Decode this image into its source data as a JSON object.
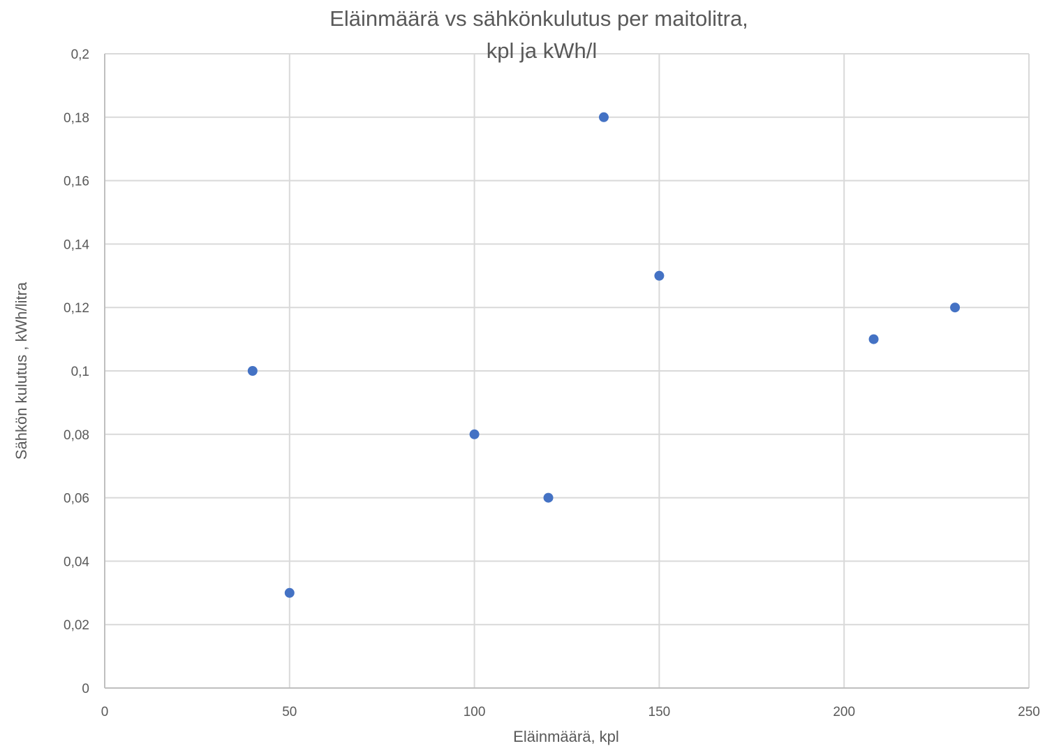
{
  "chart_data": {
    "type": "scatter",
    "title_lines": [
      "Eläinmäärä vs sähkönkulutus per maitolitra,",
      "kpl ja  kWh/l"
    ],
    "xlabel": "Eläinmäärä, kpl",
    "ylabel": "Sähkön kulutus , kWh/litra",
    "xlim": [
      0,
      250
    ],
    "ylim": [
      0,
      0.2
    ],
    "x_ticks": [
      0,
      50,
      100,
      150,
      200,
      250
    ],
    "x_tick_labels": [
      "0",
      "50",
      "100",
      "150",
      "200",
      "250"
    ],
    "y_ticks": [
      0,
      0.02,
      0.04,
      0.06,
      0.08,
      0.1,
      0.12,
      0.14,
      0.16,
      0.18,
      0.2
    ],
    "y_tick_labels": [
      "0",
      "0,02",
      "0,04",
      "0,06",
      "0,08",
      "0,1",
      "0,12",
      "0,14",
      "0,16",
      "0,18",
      "0,2"
    ],
    "grid": true,
    "legend": "none",
    "series": [
      {
        "color": "#4472c4",
        "points": [
          {
            "x": 40,
            "y": 0.1
          },
          {
            "x": 50,
            "y": 0.03
          },
          {
            "x": 100,
            "y": 0.08
          },
          {
            "x": 120,
            "y": 0.06
          },
          {
            "x": 135,
            "y": 0.18
          },
          {
            "x": 150,
            "y": 0.13
          },
          {
            "x": 208,
            "y": 0.11
          },
          {
            "x": 230,
            "y": 0.12
          }
        ]
      }
    ]
  }
}
